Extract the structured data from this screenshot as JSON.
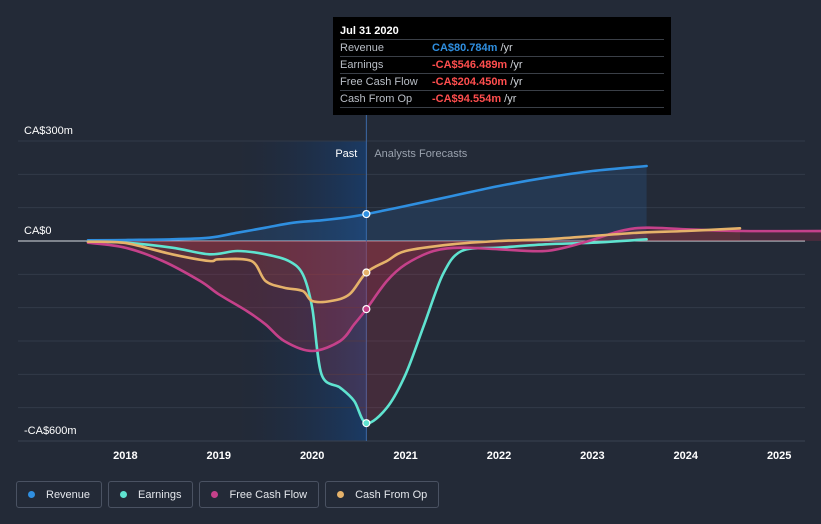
{
  "chart_data": {
    "type": "line",
    "y_unit_prefix": "CA$",
    "y_ticks": [
      {
        "value": 300,
        "label": "CA$300m"
      },
      {
        "value": 0,
        "label": "CA$0"
      },
      {
        "value": -600,
        "label": "-CA$600m"
      }
    ],
    "ylim": [
      -600,
      300
    ],
    "xlim": [
      2017.3,
      2025.6
    ],
    "x_ticks": [
      "2018",
      "2019",
      "2020",
      "2021",
      "2022",
      "2023",
      "2024",
      "2025"
    ],
    "past_label": "Past",
    "forecast_label": "Analysts Forecasts",
    "past_end": 2020.58,
    "series": [
      {
        "name": "Revenue",
        "color": "#2f8fe0",
        "x": [
          2017.6,
          2018.0,
          2018.5,
          2018.9,
          2019.2,
          2019.5,
          2019.8,
          2020.1,
          2020.4,
          2020.58,
          2021.0,
          2021.5,
          2022.0,
          2022.5,
          2023.0,
          2023.58
        ],
        "y": [
          2,
          3,
          5,
          10,
          25,
          40,
          55,
          62,
          72,
          80.784,
          105,
          135,
          165,
          190,
          210,
          225
        ],
        "forecast_from": 2020.58
      },
      {
        "name": "Earnings",
        "color": "#5fe3d0",
        "x": [
          2017.6,
          2018.0,
          2018.5,
          2018.9,
          2019.2,
          2019.5,
          2019.75,
          2019.9,
          2020.0,
          2020.1,
          2020.3,
          2020.45,
          2020.58,
          2020.8,
          2021.0,
          2021.2,
          2021.4,
          2021.6,
          2022.0,
          2022.5,
          2023.0,
          2023.58
        ],
        "y": [
          -2,
          -5,
          -20,
          -40,
          -30,
          -40,
          -60,
          -100,
          -200,
          -400,
          -440,
          -480,
          -546.489,
          -500,
          -400,
          -250,
          -100,
          -30,
          -20,
          -10,
          -5,
          5
        ]
      },
      {
        "name": "Free Cash Flow",
        "color": "#c5418a",
        "x": [
          2017.6,
          2018.0,
          2018.4,
          2018.8,
          2019.0,
          2019.3,
          2019.5,
          2019.7,
          2020.0,
          2020.3,
          2020.45,
          2020.58,
          2020.8,
          2021.0,
          2021.3,
          2021.6,
          2022.0,
          2022.5,
          2022.9,
          2023.3,
          2023.58,
          2024.0,
          2024.6,
          2025.6
        ],
        "y": [
          -5,
          -20,
          -60,
          -120,
          -160,
          -210,
          -250,
          -300,
          -330,
          -300,
          -250,
          -204.45,
          -120,
          -70,
          -30,
          -20,
          -25,
          -30,
          -5,
          30,
          40,
          35,
          30,
          30
        ]
      },
      {
        "name": "Cash From Op",
        "color": "#e5b26a",
        "x": [
          2017.6,
          2018.0,
          2018.5,
          2018.9,
          2019.0,
          2019.35,
          2019.5,
          2019.7,
          2019.9,
          2020.0,
          2020.2,
          2020.4,
          2020.58,
          2020.8,
          2021.0,
          2021.5,
          2022.0,
          2022.5,
          2023.0,
          2023.5,
          2024.0,
          2024.58
        ],
        "y": [
          -2,
          -6,
          -40,
          -60,
          -55,
          -60,
          -120,
          -140,
          -150,
          -180,
          -180,
          -160,
          -94.554,
          -60,
          -30,
          -10,
          0,
          5,
          15,
          25,
          30,
          38
        ]
      }
    ]
  },
  "tooltip": {
    "date": "Jul 31 2020",
    "rows": [
      {
        "label": "Revenue",
        "value": "CA$80.784m",
        "unit": "/yr",
        "color": "#2f8fe0"
      },
      {
        "label": "Earnings",
        "value": "-CA$546.489m",
        "unit": "/yr",
        "color": "#ff4e4e"
      },
      {
        "label": "Free Cash Flow",
        "value": "-CA$204.450m",
        "unit": "/yr",
        "color": "#ff4e4e"
      },
      {
        "label": "Cash From Op",
        "value": "-CA$94.554m",
        "unit": "/yr",
        "color": "#ff4e4e"
      }
    ]
  },
  "legend": [
    {
      "label": "Revenue",
      "color": "#2f8fe0"
    },
    {
      "label": "Earnings",
      "color": "#5fe3d0"
    },
    {
      "label": "Free Cash Flow",
      "color": "#c5418a"
    },
    {
      "label": "Cash From Op",
      "color": "#e5b26a"
    }
  ]
}
